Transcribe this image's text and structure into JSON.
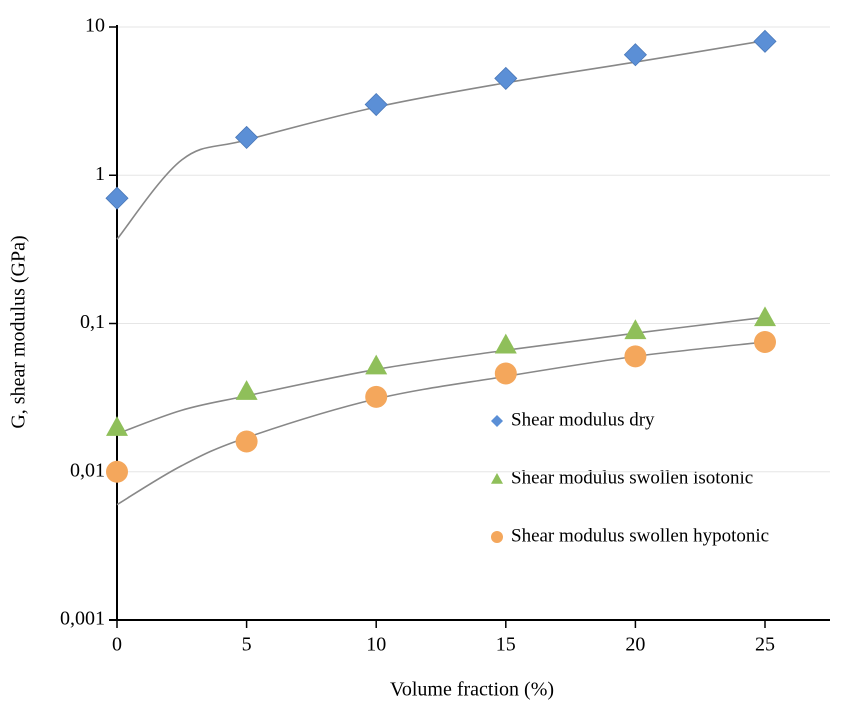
{
  "chart_data": {
    "type": "scatter",
    "x_label": "Volume fraction (%)",
    "y_label": "G, shear modulus (GPa)",
    "y_log": true,
    "grid": true,
    "legend_position": "right",
    "x": [
      0,
      5,
      10,
      15,
      20,
      25
    ],
    "xlim": [
      0,
      27.5
    ],
    "xticks": [
      0,
      5,
      10,
      15,
      20,
      25
    ],
    "ylim": [
      0.001,
      10
    ],
    "yticks": [
      {
        "value": 0.001,
        "label": "0,001"
      },
      {
        "value": 0.01,
        "label": "0,01"
      },
      {
        "value": 0.1,
        "label": "0,1"
      },
      1,
      10
    ],
    "series": [
      {
        "name": "Shear modulus dry",
        "color": "#5b8fd6",
        "marker": "diamond",
        "values": [
          0.7,
          1.8,
          3,
          4.5,
          6.5,
          8
        ]
      },
      {
        "name": "Shear modulus swollen isotonic",
        "color": "#8fbf5a",
        "marker": "triangle",
        "values": [
          0.02,
          0.035,
          0.052,
          0.072,
          0.09,
          0.11
        ]
      },
      {
        "name": "Shear modulus swollen hypotonic",
        "color": "#f4a75c",
        "marker": "circle",
        "values": [
          0.01,
          0.016,
          0.032,
          0.046,
          0.06,
          0.075
        ]
      }
    ],
    "trendline_color": "#888888",
    "trendlines": [
      {
        "x": [
          0,
          2.5,
          5,
          10,
          15,
          20,
          25
        ],
        "values": [
          0.37,
          1.27,
          1.73,
          2.88,
          4.2,
          5.8,
          8.1
        ]
      },
      {
        "x": [
          0,
          2.5,
          5,
          10,
          15,
          20,
          25
        ],
        "values": [
          0.018,
          0.026,
          0.0325,
          0.049,
          0.066,
          0.086,
          0.11
        ]
      },
      {
        "x": [
          0,
          2.5,
          5,
          10,
          15,
          20,
          25
        ],
        "values": [
          0.006,
          0.011,
          0.017,
          0.031,
          0.044,
          0.06,
          0.075
        ]
      }
    ]
  }
}
